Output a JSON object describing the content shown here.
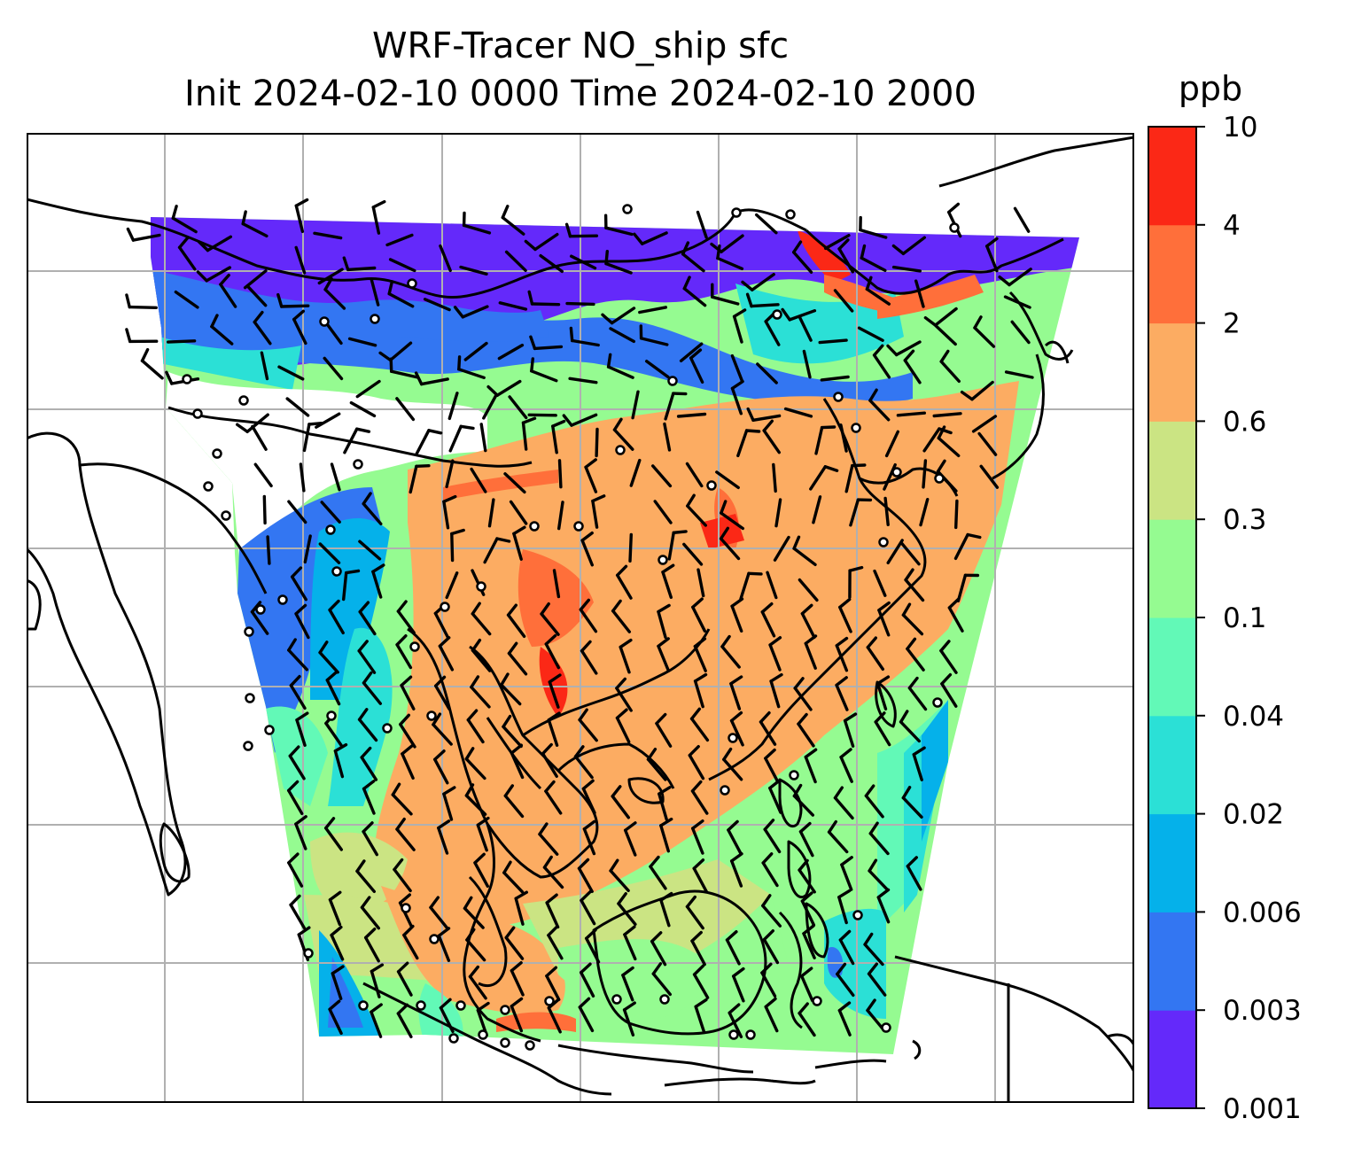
{
  "title": {
    "line1": "WRF-Tracer NO_ship sfc",
    "line2": "Init 2024-02-10 0000 Time 2024-02-10 2000"
  },
  "colorbar": {
    "unit": "ppb",
    "levels": [
      "0.001",
      "0.003",
      "0.006",
      "0.02",
      "0.04",
      "0.1",
      "0.3",
      "0.6",
      "2",
      "4",
      "10"
    ],
    "colors": [
      "#6429fa",
      "#3376f2",
      "#05b1ea",
      "#2be0d6",
      "#62f9b7",
      "#95fb91",
      "#cbe483",
      "#fcac62",
      "#ff6f3a",
      "#fb2816"
    ]
  },
  "map": {
    "field": "NO_ship",
    "level": "sfc",
    "gridlines": true,
    "coastlines": true,
    "wind_barbs": true,
    "calm_marker": "circle"
  }
}
